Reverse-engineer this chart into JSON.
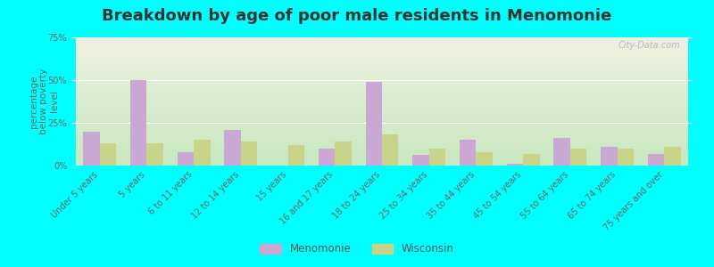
{
  "title": "Breakdown by age of poor male residents in Menomonie",
  "categories": [
    "Under 5 years",
    "5 years",
    "6 to 11 years",
    "12 to 14 years",
    "15 years",
    "16 and 17 years",
    "18 to 24 years",
    "25 to 34 years",
    "35 to 44 years",
    "45 to 54 years",
    "55 to 64 years",
    "65 to 74 years",
    "75 years and over"
  ],
  "menomonie": [
    20,
    50,
    8,
    21,
    0,
    10,
    49,
    6,
    15,
    1,
    16,
    11,
    7
  ],
  "wisconsin": [
    13,
    13,
    15,
    14,
    12,
    14,
    18,
    10,
    8,
    7,
    10,
    10,
    11
  ],
  "ylabel": "percentage\nbelow poverty\nlevel",
  "ylim": [
    0,
    75
  ],
  "yticks": [
    0,
    25,
    50,
    75
  ],
  "ytick_labels": [
    "0%",
    "25%",
    "50%",
    "75%"
  ],
  "bar_width": 0.35,
  "menomonie_color": "#c9a8d4",
  "wisconsin_color": "#c8d48a",
  "background_top": "#f0f0e0",
  "background_bottom": "#c8e8c0",
  "outer_bg": "#00ffff",
  "title_fontsize": 13,
  "axis_label_fontsize": 7.5,
  "tick_fontsize": 7,
  "watermark": "City-Data.com",
  "legend_labels": [
    "Menomonie",
    "Wisconsin"
  ]
}
